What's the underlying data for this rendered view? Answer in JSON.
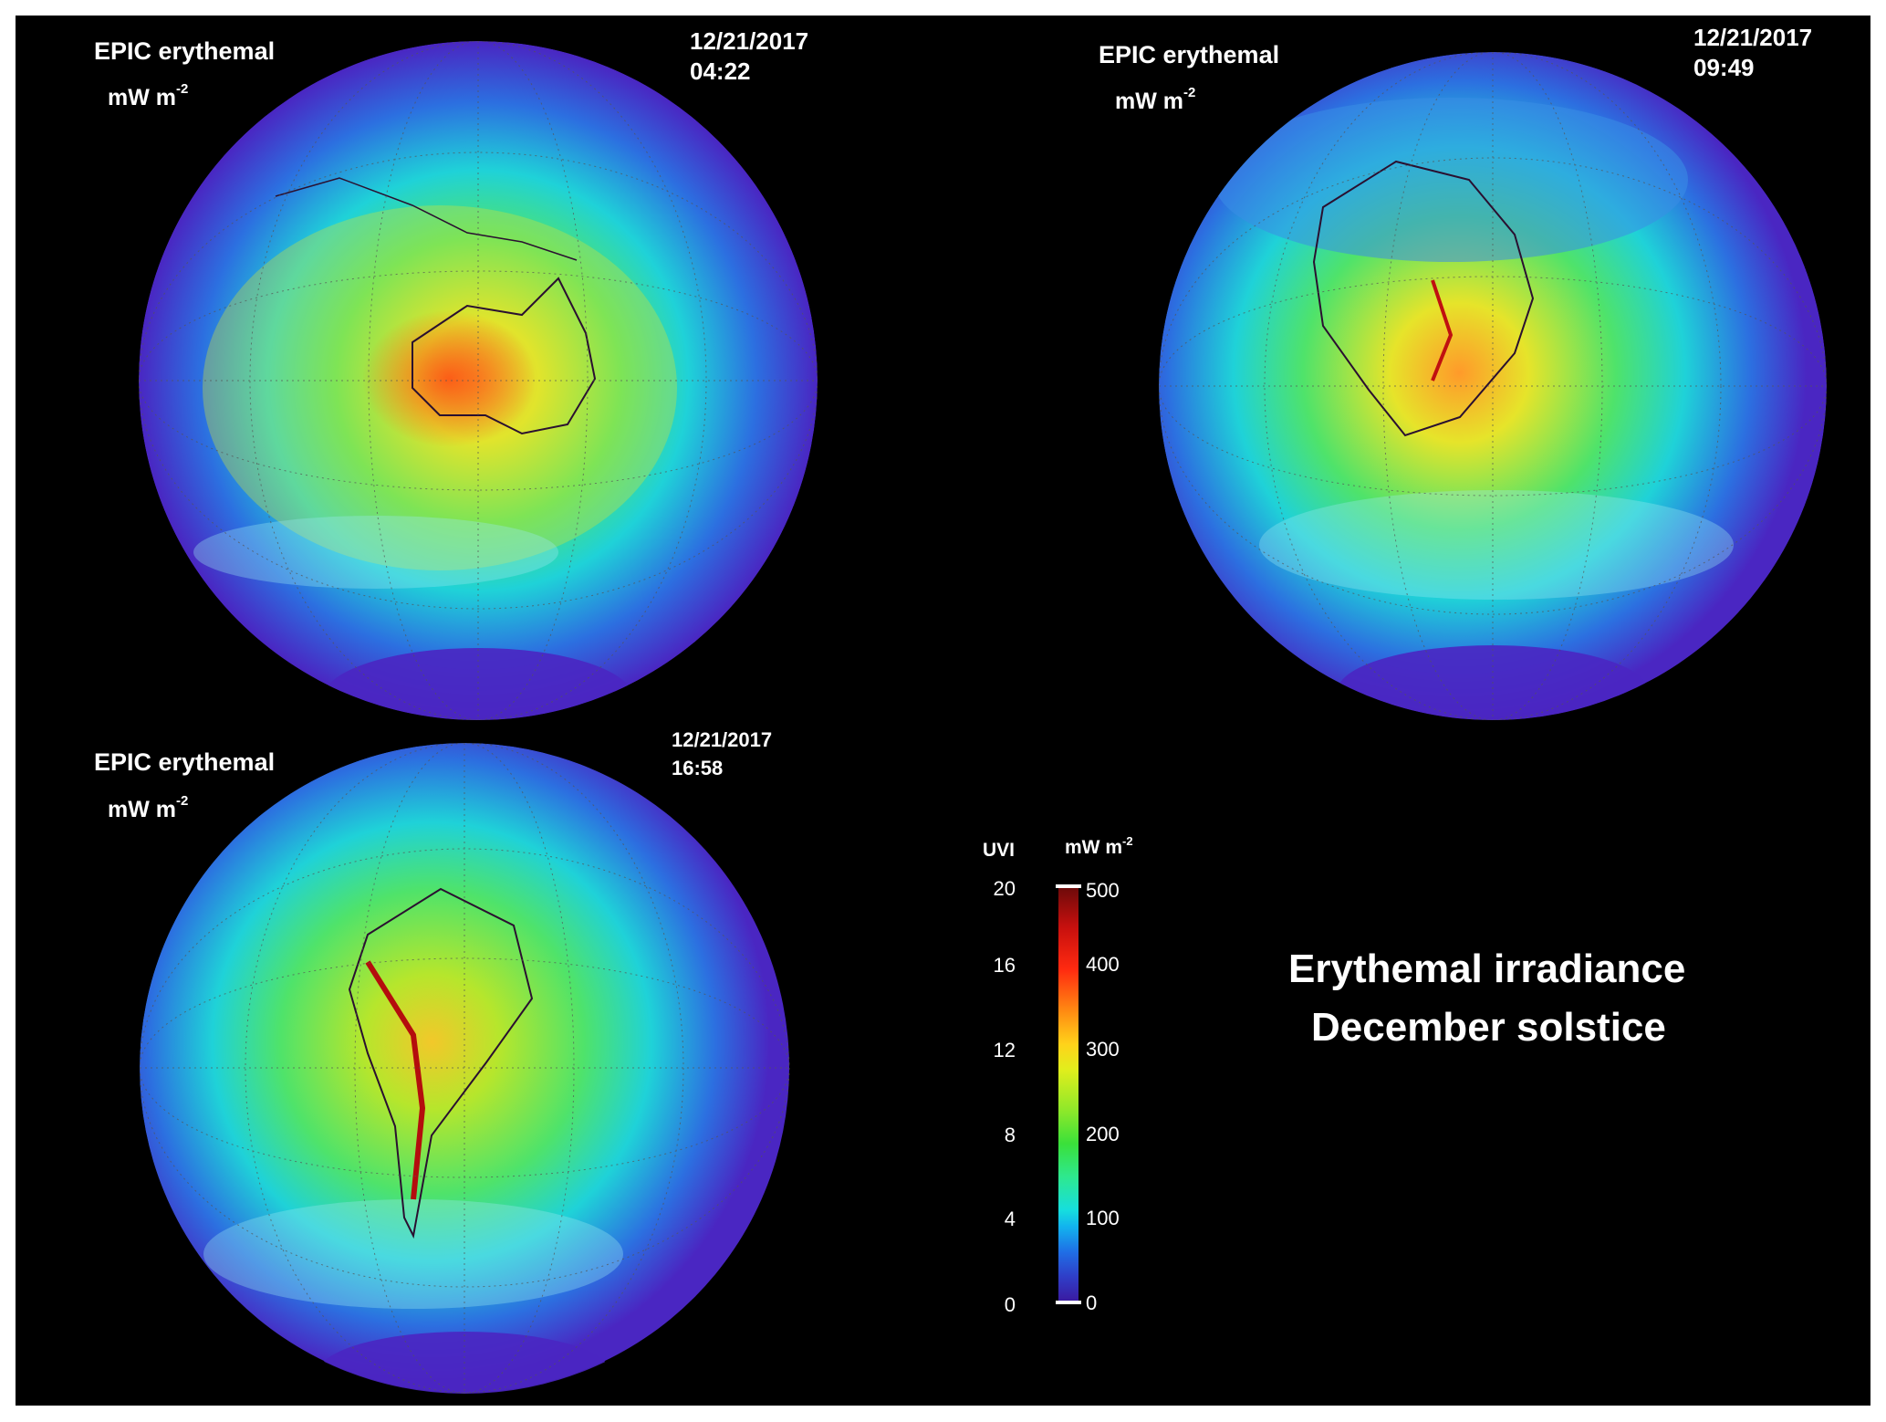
{
  "panels": [
    {
      "title": "EPIC erythemal",
      "unit": "mW  m",
      "unit_exp": "-2",
      "date": "12/21/2017",
      "time": "04:22",
      "region": "australia"
    },
    {
      "title": "EPIC erythemal",
      "unit": "mW  m",
      "unit_exp": "-2",
      "date": "12/21/2017",
      "time": "09:49",
      "region": "africa"
    },
    {
      "title": "EPIC erythemal",
      "unit": "mW  m",
      "unit_exp": "-2",
      "date": "12/21/2017",
      "time": "16:58",
      "region": "south-america"
    }
  ],
  "legend": {
    "left_title": "UVI",
    "right_title": "mW  m",
    "right_exp": "-2",
    "uvi_ticks": [
      "20",
      "16",
      "12",
      "8",
      "4",
      "0"
    ],
    "irr_ticks": [
      "500",
      "400",
      "300",
      "200",
      "100",
      "0"
    ],
    "colors": [
      "#3a1aa0",
      "#1f6fe6",
      "#16dede",
      "#3ae03a",
      "#e2ee1c",
      "#ff8a12",
      "#ff2a10",
      "#6b0a0a"
    ]
  },
  "headline": {
    "line1": "Erythemal irradiance",
    "line2": "December solstice"
  }
}
